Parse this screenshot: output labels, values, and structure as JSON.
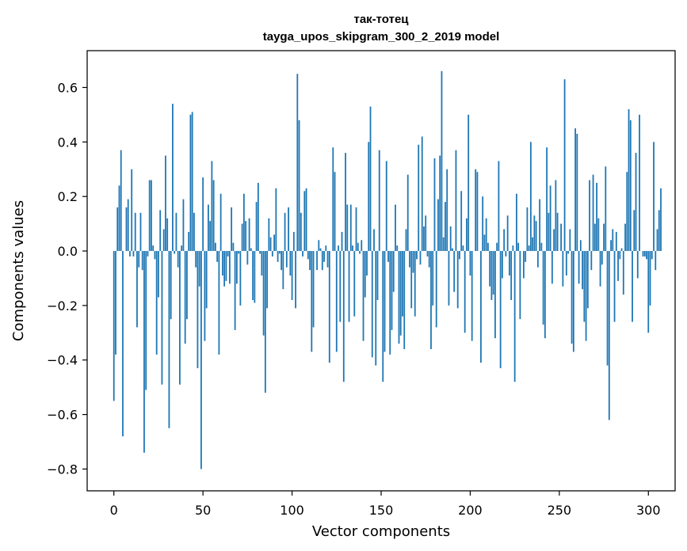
{
  "chart_data": {
    "type": "bar",
    "title_line1": "так-тотец",
    "title_line2": "tayga_upos_skipgram_300_2_2019 model",
    "xlabel": "Vector components",
    "ylabel": "Components values",
    "xlim": [
      -15,
      315
    ],
    "ylim": [
      -0.88,
      0.735
    ],
    "x_ticks": [
      0,
      50,
      100,
      150,
      200,
      250,
      300
    ],
    "x_tick_labels": [
      "0",
      "50",
      "100",
      "150",
      "200",
      "250",
      "300"
    ],
    "y_ticks": [
      0.6,
      0.4,
      0.2,
      0.0,
      -0.2,
      -0.4,
      -0.6,
      -0.8
    ],
    "y_tick_labels": [
      "0.6",
      "0.4",
      "0.2",
      "0.0",
      "−0.2",
      "−0.4",
      "−0.6",
      "−0.8"
    ],
    "bar_color": "#1f77b4",
    "values": [
      -0.55,
      -0.38,
      0.16,
      0.24,
      0.37,
      -0.68,
      0.0,
      0.16,
      0.19,
      -0.02,
      0.3,
      -0.02,
      0.14,
      -0.28,
      -0.06,
      0.14,
      -0.07,
      -0.74,
      -0.51,
      -0.02,
      0.26,
      0.26,
      0.02,
      -0.03,
      -0.38,
      -0.17,
      0.15,
      -0.49,
      0.08,
      0.35,
      0.12,
      -0.65,
      -0.25,
      0.54,
      -0.01,
      0.14,
      -0.06,
      -0.49,
      0.02,
      0.19,
      -0.34,
      -0.25,
      0.07,
      0.5,
      0.51,
      0.14,
      -0.06,
      -0.43,
      -0.13,
      -0.8,
      0.27,
      -0.33,
      -0.21,
      0.17,
      0.11,
      0.33,
      0.26,
      0.03,
      -0.04,
      -0.38,
      0.21,
      -0.09,
      -0.13,
      -0.11,
      -0.02,
      -0.12,
      0.16,
      0.03,
      -0.29,
      -0.12,
      -0.01,
      -0.2,
      0.1,
      0.21,
      0.11,
      -0.05,
      0.12,
      0.01,
      -0.18,
      -0.19,
      0.18,
      0.25,
      -0.01,
      -0.09,
      -0.31,
      -0.52,
      -0.21,
      0.12,
      0.05,
      -0.02,
      0.06,
      0.23,
      -0.04,
      -0.01,
      -0.07,
      -0.14,
      0.14,
      -0.06,
      0.16,
      -0.09,
      -0.18,
      0.07,
      -0.21,
      0.65,
      0.48,
      0.14,
      -0.02,
      0.22,
      0.23,
      -0.03,
      -0.07,
      -0.37,
      -0.28,
      0.0,
      -0.07,
      0.04,
      0.01,
      -0.07,
      -0.04,
      0.02,
      -0.06,
      -0.41,
      0.0,
      0.38,
      0.29,
      -0.37,
      0.02,
      -0.26,
      0.07,
      -0.48,
      0.36,
      0.17,
      -0.26,
      0.17,
      0.02,
      -0.24,
      0.16,
      0.03,
      -0.01,
      0.04,
      -0.33,
      -0.17,
      -0.09,
      0.4,
      0.53,
      -0.39,
      0.08,
      -0.42,
      -0.18,
      0.37,
      0.0,
      -0.48,
      -0.37,
      0.33,
      -0.04,
      -0.38,
      -0.29,
      -0.15,
      0.17,
      0.02,
      -0.34,
      -0.31,
      -0.24,
      -0.36,
      0.08,
      0.28,
      -0.06,
      -0.21,
      -0.08,
      -0.24,
      -0.03,
      0.39,
      -0.05,
      0.42,
      0.09,
      0.13,
      -0.02,
      -0.06,
      -0.36,
      -0.2,
      0.34,
      -0.28,
      0.19,
      0.35,
      0.66,
      0.05,
      0.18,
      0.3,
      -0.2,
      0.09,
      0.01,
      -0.15,
      0.37,
      -0.21,
      -0.03,
      0.22,
      0.02,
      -0.3,
      0.12,
      0.5,
      -0.09,
      -0.33,
      0.0,
      0.3,
      0.29,
      0.0,
      -0.41,
      0.2,
      0.06,
      0.12,
      0.03,
      -0.13,
      -0.18,
      -0.16,
      -0.32,
      0.03,
      0.33,
      -0.43,
      -0.1,
      0.08,
      -0.02,
      0.13,
      -0.09,
      -0.18,
      0.02,
      -0.48,
      0.21,
      0.03,
      -0.25,
      0.0,
      -0.1,
      -0.04,
      0.16,
      0.02,
      0.4,
      0.05,
      0.13,
      0.11,
      -0.06,
      0.19,
      0.03,
      -0.27,
      -0.32,
      0.38,
      0.14,
      0.24,
      -0.12,
      0.08,
      0.26,
      0.14,
      0.0,
      0.1,
      -0.13,
      0.63,
      -0.09,
      -0.01,
      0.08,
      -0.34,
      -0.37,
      0.45,
      0.43,
      -0.12,
      0.04,
      -0.14,
      -0.26,
      -0.33,
      -0.21,
      0.26,
      -0.07,
      0.28,
      0.1,
      0.25,
      0.12,
      -0.13,
      -0.05,
      0.1,
      0.31,
      -0.42,
      -0.62,
      0.04,
      0.08,
      -0.26,
      0.07,
      -0.11,
      -0.03,
      0.01,
      -0.16,
      0.1,
      0.29,
      0.52,
      0.48,
      -0.26,
      0.15,
      0.36,
      -0.1,
      0.5,
      0.0,
      -0.02,
      -0.02,
      -0.03,
      -0.3,
      -0.2,
      -0.03,
      0.4,
      -0.07,
      0.08,
      0.15,
      0.23
    ]
  }
}
